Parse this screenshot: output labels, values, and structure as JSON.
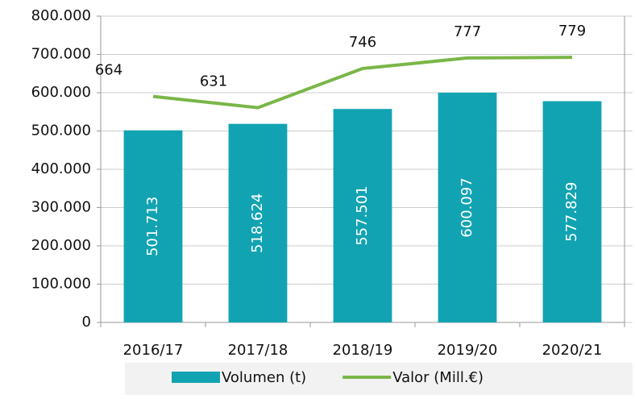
{
  "chart_data": {
    "type": "bar_line",
    "categories": [
      "2016/17",
      "2017/18",
      "2018/19",
      "2019/20",
      "2020/21"
    ],
    "series": [
      {
        "name": "Volumen (t)",
        "type": "bar",
        "color": "#12a3b2",
        "values": [
          501713,
          518624,
          557501,
          600097,
          577829
        ],
        "value_labels": [
          "501.713",
          "518.624",
          "557.501",
          "600.097",
          "577.829"
        ]
      },
      {
        "name": "Valor (Mill.€)",
        "type": "line",
        "axis": "y2",
        "color": "#7ab648",
        "values": [
          664,
          631,
          746,
          777,
          779
        ]
      }
    ],
    "ylim": [
      0,
      800000
    ],
    "yticks": [
      0,
      {
        "value": 100000,
        "label": "100.000"
      },
      {
        "value": 200000,
        "label": "200.000"
      },
      {
        "value": 300000,
        "label": "300.000"
      },
      {
        "value": 400000,
        "label": "400.000"
      },
      {
        "value": 500000,
        "label": "500.000"
      },
      {
        "value": 600000,
        "label": "600.000"
      },
      {
        "value": 700000,
        "label": "700.000"
      },
      {
        "value": 800000,
        "label": "800.000"
      }
    ],
    "y2lim": [
      0,
      900
    ],
    "grid": true,
    "legend": "bottom"
  }
}
